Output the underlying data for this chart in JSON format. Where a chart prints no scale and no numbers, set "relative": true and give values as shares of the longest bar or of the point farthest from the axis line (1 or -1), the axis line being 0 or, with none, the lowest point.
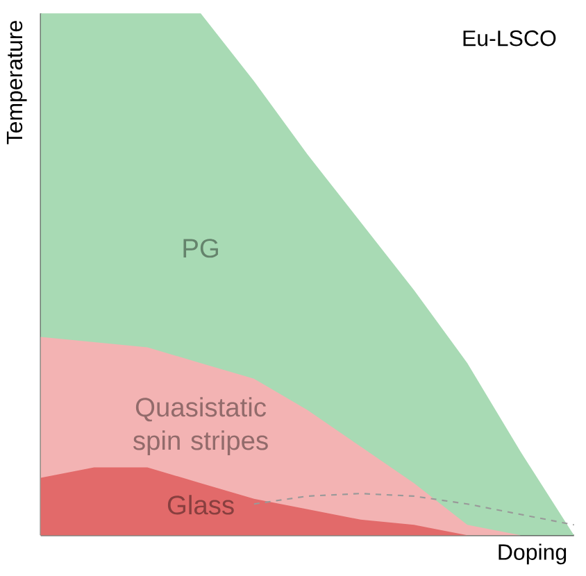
{
  "chart_data": {
    "type": "area",
    "relative": true,
    "xlabel": "Doping",
    "ylabel": "Temperature",
    "annotations": [
      "Eu-LSCO"
    ],
    "categories": [
      null,
      null,
      null,
      null,
      null,
      null,
      null,
      null,
      null,
      null,
      null
    ],
    "series": [
      {
        "name": "PG",
        "color": "#a8dab4",
        "values": [
          1,
          1,
          1,
          1,
          0.87,
          0.73,
          0.6,
          0.47,
          0.33,
          0.16,
          0
        ]
      },
      {
        "name": "Quasistatic spin stripes",
        "color": "#f3b3b3",
        "values": [
          0.38,
          0.37,
          0.36,
          0.33,
          0.3,
          0.24,
          0.17,
          0.1,
          0.02,
          0,
          0
        ]
      },
      {
        "name": "Glass",
        "color": "#e26a6a",
        "values": [
          0.11,
          0.13,
          0.13,
          0.1,
          0.07,
          0.05,
          0.03,
          0.02,
          0,
          0,
          0
        ]
      },
      {
        "type": "line",
        "line_style": "dashed",
        "color": "#999999",
        "values": [
          null,
          null,
          null,
          null,
          0.06,
          0.075,
          0.08,
          0.075,
          0.06,
          0.04,
          0.02
        ]
      }
    ]
  }
}
